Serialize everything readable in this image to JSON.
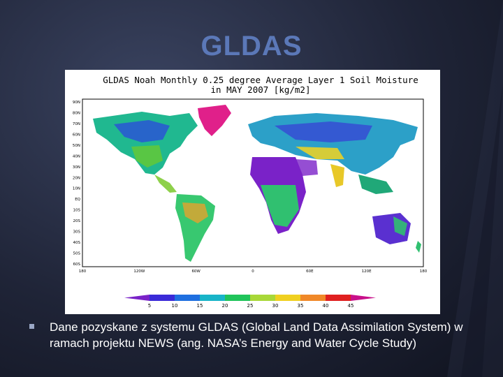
{
  "slide": {
    "title": "GLDAS",
    "bullet_text": "Dane pozyskane z systemu GLDAS (Global Land Data Assimilation System)  w ramach projektu NEWS (ang. NASA’s Energy and Water Cycle Study)"
  },
  "map": {
    "title_line1": "GLDAS Noah Monthly 0.25 degree Average Layer 1 Soil Moisture",
    "title_line2": "in MAY 2007 [kg/m2]",
    "lat_labels": [
      "90N",
      "80N",
      "70N",
      "60N",
      "50N",
      "40N",
      "30N",
      "20N",
      "10N",
      "EQ",
      "10S",
      "20S",
      "30S",
      "40S",
      "50S",
      "60S"
    ],
    "lon_labels": [
      "180",
      "120W",
      "60W",
      "0",
      "60E",
      "120E",
      "180"
    ],
    "colorbar": {
      "ticks": [
        "5",
        "10",
        "15",
        "20",
        "25",
        "30",
        "35",
        "40",
        "45"
      ],
      "colors": [
        "#7a22c8",
        "#3a2ad8",
        "#1f6fe0",
        "#18b4c8",
        "#20c45a",
        "#a8d838",
        "#f0d020",
        "#f08828",
        "#e02020",
        "#c8108a"
      ]
    }
  }
}
